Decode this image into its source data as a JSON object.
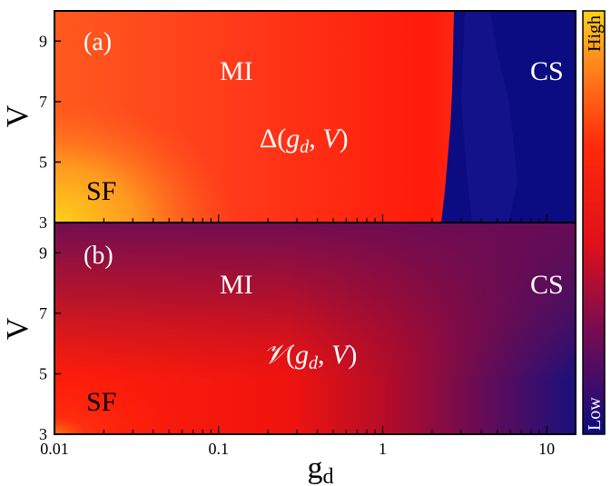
{
  "chart_data": [
    {
      "type": "heatmap",
      "panel_label": "(a)",
      "quantity_label": "Δ(g_d, V)",
      "quantity_symbol": "Δ",
      "regions": [
        "MI",
        "CS",
        "SF"
      ],
      "xlabel": "",
      "ylabel": "V",
      "x_scale": "log",
      "xlim": [
        0.01,
        15
      ],
      "ylim": [
        3,
        10
      ],
      "yticks": [
        "3",
        "5",
        "7",
        "9"
      ],
      "colors": {
        "high": "#ffd21a",
        "mid": "#ff1a0a",
        "low": "#0c0c82"
      }
    },
    {
      "type": "heatmap",
      "panel_label": "(b)",
      "quantity_label": "𝒱(g_d, V)",
      "quantity_symbol": "𝒱",
      "regions": [
        "MI",
        "CS",
        "SF"
      ],
      "xlabel": "g",
      "xlabel_sub": "d",
      "ylabel": "V",
      "x_scale": "log",
      "xlim": [
        0.01,
        15
      ],
      "ylim": [
        3,
        10
      ],
      "xticks": [
        "0.01",
        "0.1",
        "1",
        "10"
      ],
      "yticks": [
        "3",
        "5",
        "7",
        "9"
      ],
      "colors": {
        "high": "#ff1a0a",
        "mid": "#9a0c38",
        "low": "#0c0c82"
      }
    }
  ],
  "colorbar": {
    "high_label": "High",
    "low_label": "Low"
  },
  "math": {
    "arg_g": "g",
    "arg_sub": "d",
    "arg_v": "V"
  }
}
